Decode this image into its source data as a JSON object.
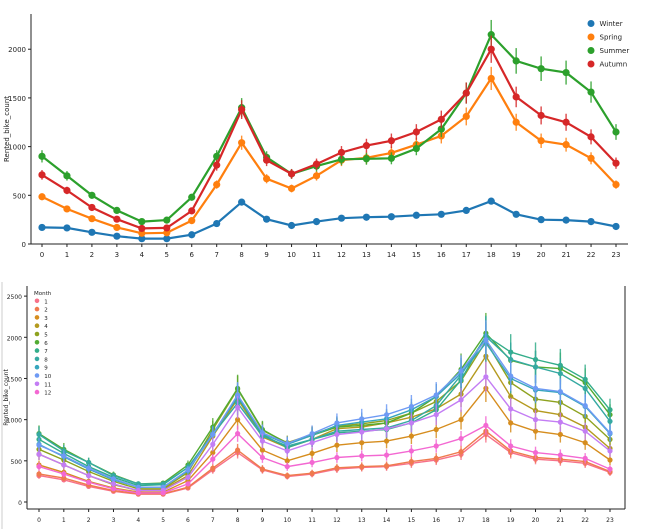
{
  "charts": [
    {
      "type": "line",
      "ylabel": "Rented_bike_count",
      "xlabel": "",
      "x": [
        0,
        1,
        2,
        3,
        4,
        5,
        6,
        7,
        8,
        9,
        10,
        11,
        12,
        13,
        14,
        15,
        16,
        17,
        18,
        19,
        20,
        21,
        22,
        23
      ],
      "y_ticks": [
        0,
        500,
        1000,
        1500,
        2000
      ],
      "ylim": [
        0,
        2300
      ],
      "legend_position": "top-right",
      "series": [
        {
          "name": "Winter",
          "color": "#1f77b4",
          "values": [
            170,
            165,
            120,
            80,
            55,
            55,
            95,
            210,
            430,
            255,
            190,
            230,
            265,
            275,
            280,
            295,
            305,
            345,
            440,
            305,
            250,
            245,
            230,
            180
          ]
        },
        {
          "name": "Spring",
          "color": "#ff7f0e",
          "values": [
            485,
            360,
            260,
            170,
            110,
            115,
            240,
            610,
            1040,
            670,
            570,
            700,
            860,
            885,
            935,
            1020,
            1110,
            1310,
            1700,
            1250,
            1060,
            1020,
            880,
            610
          ]
        },
        {
          "name": "Summer",
          "color": "#2ca02c",
          "values": [
            900,
            700,
            500,
            345,
            230,
            245,
            480,
            900,
            1400,
            890,
            720,
            800,
            870,
            875,
            880,
            980,
            1180,
            1550,
            2150,
            1880,
            1800,
            1760,
            1560,
            1150
          ]
        },
        {
          "name": "Autumn",
          "color": "#d62728",
          "values": [
            710,
            550,
            375,
            255,
            160,
            165,
            340,
            810,
            1380,
            860,
            720,
            820,
            940,
            1010,
            1060,
            1150,
            1280,
            1550,
            2000,
            1510,
            1320,
            1250,
            1100,
            830
          ]
        }
      ]
    },
    {
      "type": "line",
      "ylabel": "Rented_bike_count",
      "xlabel": "",
      "x": [
        0,
        1,
        2,
        3,
        4,
        5,
        6,
        7,
        8,
        9,
        10,
        11,
        12,
        13,
        14,
        15,
        16,
        17,
        18,
        19,
        20,
        21,
        22,
        23
      ],
      "y_ticks": [
        0,
        500,
        1000,
        1500,
        2000,
        2500
      ],
      "ylim": [
        0,
        2550
      ],
      "legend_title": "Month",
      "legend_position": "top-left",
      "series": [
        {
          "name": "1",
          "color": "#f77189",
          "values": [
            320,
            270,
            190,
            130,
            95,
            95,
            170,
            390,
            600,
            390,
            310,
            340,
            400,
            420,
            430,
            470,
            510,
            580,
            820,
            600,
            520,
            500,
            470,
            360
          ]
        },
        {
          "name": "2",
          "color": "#ef7a4d",
          "values": [
            340,
            290,
            205,
            140,
            100,
            100,
            180,
            410,
            630,
            400,
            320,
            350,
            415,
            430,
            440,
            490,
            530,
            610,
            860,
            620,
            540,
            520,
            490,
            370
          ]
        },
        {
          "name": "3",
          "color": "#d68d1e",
          "values": [
            450,
            360,
            250,
            170,
            120,
            120,
            260,
            600,
            1000,
            630,
            500,
            590,
            690,
            720,
            740,
            800,
            880,
            1000,
            1380,
            960,
            860,
            820,
            720,
            510
          ]
        },
        {
          "name": "4",
          "color": "#b49a1f",
          "values": [
            580,
            450,
            320,
            210,
            140,
            150,
            320,
            800,
            1250,
            790,
            660,
            760,
            890,
            910,
            960,
            1030,
            1130,
            1310,
            1770,
            1280,
            1110,
            1060,
            910,
            650
          ]
        },
        {
          "name": "5",
          "color": "#8ea21f",
          "values": [
            640,
            510,
            370,
            250,
            160,
            160,
            360,
            880,
            1370,
            870,
            720,
            820,
            920,
            950,
            990,
            1080,
            1220,
            1470,
            1950,
            1450,
            1250,
            1210,
            1040,
            760
          ]
        },
        {
          "name": "6",
          "color": "#52ab32",
          "values": [
            830,
            640,
            480,
            330,
            220,
            230,
            450,
            910,
            1380,
            880,
            710,
            810,
            910,
            930,
            960,
            1080,
            1280,
            1610,
            2050,
            1720,
            1640,
            1620,
            1450,
            1060
          ]
        },
        {
          "name": "7",
          "color": "#33ad8a",
          "values": [
            760,
            590,
            430,
            300,
            200,
            210,
            420,
            830,
            1270,
            820,
            660,
            760,
            840,
            860,
            880,
            960,
            1120,
            1480,
            2020,
            1820,
            1730,
            1660,
            1490,
            1120
          ]
        },
        {
          "name": "8",
          "color": "#35a9a2",
          "values": [
            820,
            620,
            480,
            320,
            220,
            220,
            420,
            820,
            1200,
            800,
            680,
            760,
            860,
            880,
            900,
            990,
            1170,
            1540,
            2010,
            1730,
            1640,
            1560,
            1380,
            980
          ]
        },
        {
          "name": "9",
          "color": "#37a6bd",
          "values": [
            700,
            550,
            400,
            270,
            180,
            180,
            380,
            820,
            1290,
            830,
            700,
            810,
            930,
            970,
            1010,
            1120,
            1280,
            1560,
            1930,
            1500,
            1360,
            1330,
            1160,
            830
          ]
        },
        {
          "name": "10",
          "color": "#6e9af4",
          "values": [
            690,
            560,
            410,
            280,
            180,
            180,
            390,
            820,
            1300,
            840,
            710,
            830,
            960,
            1010,
            1060,
            1160,
            1300,
            1590,
            1970,
            1530,
            1380,
            1340,
            1170,
            840
          ]
        },
        {
          "name": "11",
          "color": "#c37df4",
          "values": [
            580,
            450,
            320,
            220,
            140,
            140,
            300,
            700,
            1150,
            740,
            620,
            720,
            820,
            850,
            890,
            960,
            1060,
            1240,
            1520,
            1130,
            1000,
            970,
            860,
            620
          ]
        },
        {
          "name": "12",
          "color": "#f368d2",
          "values": [
            430,
            340,
            240,
            160,
            110,
            110,
            220,
            520,
            830,
            540,
            430,
            480,
            540,
            560,
            570,
            620,
            680,
            770,
            930,
            680,
            600,
            570,
            530,
            400
          ]
        }
      ]
    }
  ]
}
